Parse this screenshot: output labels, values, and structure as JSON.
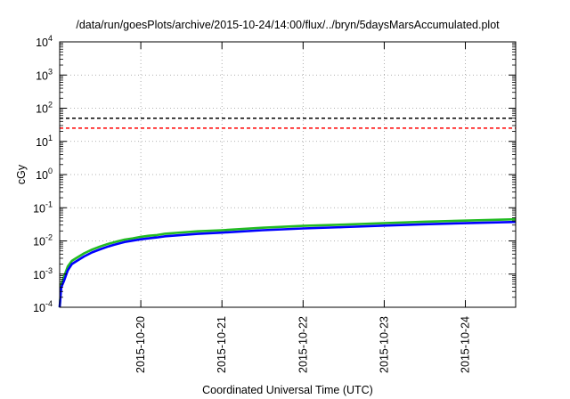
{
  "chart_data": {
    "type": "line",
    "title": "/data/run/goesPlots/archive/2015-10-24/14:00/flux/../bryn/5daysMarsAccumulated.plot",
    "xlabel": "Coordinated Universal Time (UTC)",
    "ylabel": "cGy",
    "y_scale": "log",
    "ylim": [
      0.0001,
      10000
    ],
    "xlim": [
      0,
      5.62
    ],
    "x_ticks": [
      {
        "x": 1,
        "label": "2015-10-20"
      },
      {
        "x": 2,
        "label": "2015-10-21"
      },
      {
        "x": 3,
        "label": "2015-10-22"
      },
      {
        "x": 4,
        "label": "2015-10-23"
      },
      {
        "x": 5,
        "label": "2015-10-24"
      }
    ],
    "y_ticks": [
      {
        "value": 0.0001,
        "base": "10",
        "exp": "-4"
      },
      {
        "value": 0.001,
        "base": "10",
        "exp": "-3"
      },
      {
        "value": 0.01,
        "base": "10",
        "exp": "-2"
      },
      {
        "value": 0.1,
        "base": "10",
        "exp": "-1"
      },
      {
        "value": 1,
        "base": "10",
        "exp": "0"
      },
      {
        "value": 10,
        "base": "10",
        "exp": "1"
      },
      {
        "value": 100,
        "base": "10",
        "exp": "2"
      },
      {
        "value": 1000,
        "base": "10",
        "exp": "3"
      },
      {
        "value": 10000,
        "base": "10",
        "exp": "4"
      }
    ],
    "grid": true,
    "reference_lines": [
      {
        "y": 50,
        "color": "#000000",
        "style": "dashed"
      },
      {
        "y": 25,
        "color": "#ff0000",
        "style": "dashed"
      }
    ],
    "series": [
      {
        "color": "#22bb22",
        "x": [
          0,
          0.02,
          0.05,
          0.1,
          0.15,
          0.2,
          0.3,
          0.4,
          0.5,
          0.6,
          0.7,
          0.8,
          0.9,
          1.0,
          1.1,
          1.2,
          1.3,
          1.5,
          1.7,
          2.0,
          2.5,
          3.0,
          3.5,
          4.0,
          4.5,
          5.0,
          5.62
        ],
        "values": [
          6e-05,
          0.0005,
          0.0008,
          0.0017,
          0.0025,
          0.003,
          0.0042,
          0.0055,
          0.0068,
          0.0082,
          0.0095,
          0.011,
          0.012,
          0.0133,
          0.0143,
          0.015,
          0.0165,
          0.018,
          0.0195,
          0.021,
          0.025,
          0.0285,
          0.031,
          0.0345,
          0.038,
          0.041,
          0.045
        ]
      },
      {
        "color": "#0000ff",
        "x": [
          0,
          0.02,
          0.05,
          0.1,
          0.15,
          0.2,
          0.3,
          0.4,
          0.5,
          0.6,
          0.7,
          0.8,
          0.9,
          1.0,
          1.1,
          1.2,
          1.3,
          1.5,
          1.7,
          2.0,
          2.5,
          3.0,
          3.5,
          4.0,
          4.5,
          5.0,
          5.62
        ],
        "values": [
          5e-05,
          0.0004,
          0.0006,
          0.0013,
          0.002,
          0.0024,
          0.0034,
          0.0045,
          0.0056,
          0.0068,
          0.008,
          0.0093,
          0.0102,
          0.0112,
          0.012,
          0.0127,
          0.0138,
          0.015,
          0.0163,
          0.0178,
          0.021,
          0.0238,
          0.026,
          0.029,
          0.0318,
          0.0343,
          0.0372
        ]
      }
    ]
  }
}
